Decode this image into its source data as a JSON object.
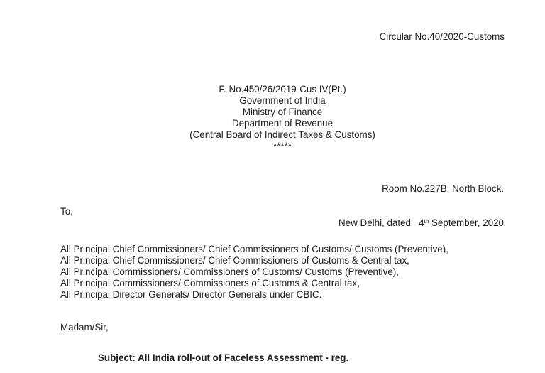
{
  "page": {
    "background_color": "#ffffff",
    "text_color": "#1e1e1e"
  },
  "document": {
    "circular_no": "Circular No.40/2020-Customs",
    "letterhead": {
      "file_no": "F. No.450/26/2019-Cus IV(Pt.)",
      "org_line1": "Government of India",
      "org_line2": "Ministry of Finance",
      "org_line3": "Department of Revenue",
      "org_line4": "(Central Board of Indirect Taxes & Customs)",
      "separator": "*****"
    },
    "issue_address": {
      "room_line": "Room No.227B, North Block.",
      "date_prefix": "New Delhi, dated   4",
      "date_superscript": "th",
      "date_suffix": " September, 2020"
    },
    "salutation_to": "To,",
    "addressees": [
      "All Principal Chief Commissioners/ Chief Commissioners of Customs/ Customs (Preventive),",
      "All Principal Chief Commissioners/ Chief Commissioners of Customs & Central tax,",
      "All Principal Commissioners/ Commissioners of Customs/ Customs (Preventive),",
      "All Principal Commissioners/ Commissioners of Customs & Central tax,",
      "All Principal Director Generals/ Director Generals under CBIC."
    ],
    "greeting": "Madam/Sir,",
    "subject": "Subject: All India roll-out of Faceless Assessment - reg."
  }
}
